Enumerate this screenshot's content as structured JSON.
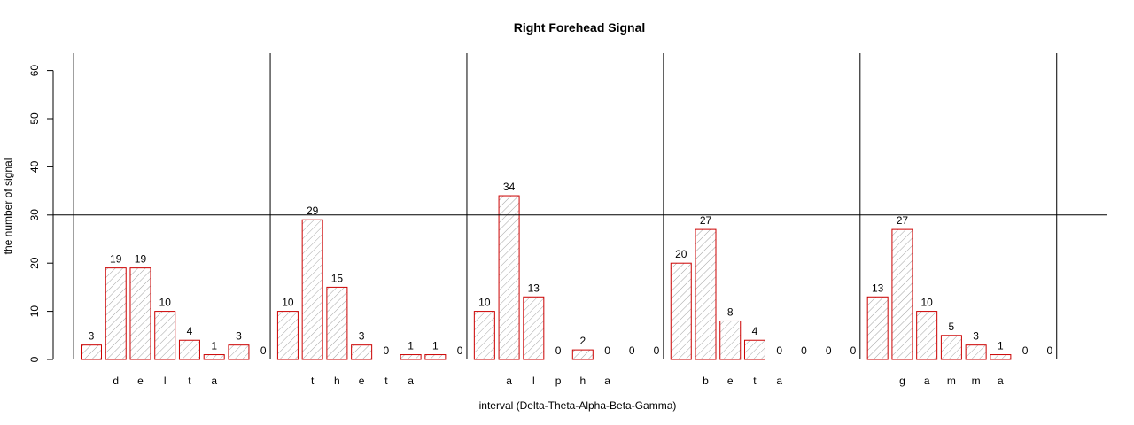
{
  "chart_data": {
    "type": "bar",
    "title": "Right Forehead Signal",
    "xlabel": "interval (Delta-Theta-Alpha-Beta-Gamma)",
    "ylabel": "the number of signal",
    "ylim": [
      0,
      60
    ],
    "y_ticks": [
      0,
      10,
      20,
      30,
      40,
      50,
      60
    ],
    "reference_line_y": 30,
    "groups": [
      {
        "name": "delta",
        "letters": [
          "d",
          "e",
          "l",
          "t",
          "a"
        ],
        "values": [
          3,
          19,
          19,
          10,
          4,
          1,
          3,
          0
        ]
      },
      {
        "name": "theta",
        "letters": [
          "t",
          "h",
          "e",
          "t",
          "a"
        ],
        "values": [
          10,
          29,
          15,
          3,
          0,
          1,
          1,
          0
        ]
      },
      {
        "name": "alpha",
        "letters": [
          "a",
          "l",
          "p",
          "h",
          "a"
        ],
        "values": [
          10,
          34,
          13,
          0,
          2,
          0,
          0,
          0
        ]
      },
      {
        "name": "beta",
        "letters": [
          "b",
          "e",
          "t",
          "a"
        ],
        "values": [
          20,
          27,
          8,
          4,
          0,
          0,
          0,
          0
        ]
      },
      {
        "name": "gamma",
        "letters": [
          "g",
          "a",
          "m",
          "m",
          "a"
        ],
        "values": [
          13,
          27,
          10,
          5,
          3,
          1,
          0,
          0
        ]
      }
    ],
    "bar_color": "#cc0000",
    "grid": false,
    "legend": "none"
  }
}
